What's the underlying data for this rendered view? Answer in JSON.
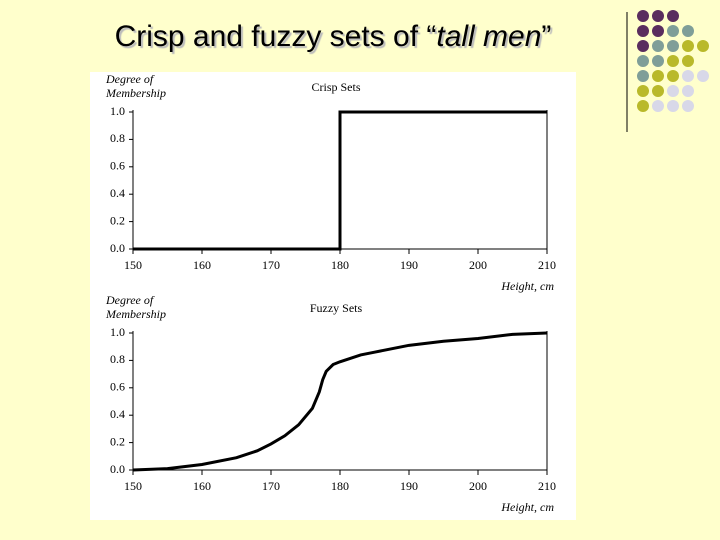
{
  "slide": {
    "title_parts": [
      "Crisp and fuzzy sets of “",
      "tall men",
      "”"
    ]
  },
  "chart_data": [
    {
      "type": "line",
      "title": "Crisp Sets",
      "ylabel": [
        "Degree of",
        "Membership"
      ],
      "xlabel": "Height, cm",
      "x": [
        150,
        180,
        180,
        210
      ],
      "values": [
        0,
        0,
        1,
        1
      ],
      "color": "#000000",
      "xlim": [
        150,
        210
      ],
      "xticks": [
        150,
        160,
        170,
        180,
        190,
        200,
        210
      ],
      "ylim": [
        0,
        1
      ],
      "yticks": [
        {
          "value": 0,
          "label": "0.0"
        },
        0.2,
        0.4,
        0.6,
        0.8,
        {
          "value": 1,
          "label": "1.0"
        }
      ]
    },
    {
      "type": "line",
      "title": "Fuzzy Sets",
      "ylabel": [
        "Degree of",
        "Membership"
      ],
      "xlabel": "Height, cm",
      "x": [
        150,
        155,
        160,
        165,
        168,
        170,
        172,
        174,
        176,
        177,
        177.5,
        178,
        179,
        180,
        183,
        185,
        190,
        195,
        200,
        205,
        210
      ],
      "values": [
        0,
        0.01,
        0.04,
        0.09,
        0.14,
        0.19,
        0.25,
        0.33,
        0.45,
        0.57,
        0.66,
        0.72,
        0.77,
        0.79,
        0.84,
        0.86,
        0.91,
        0.94,
        0.96,
        0.99,
        1.0
      ],
      "color": "#000000",
      "xlim": [
        150,
        210
      ],
      "xticks": [
        150,
        160,
        170,
        180,
        190,
        200,
        210
      ],
      "ylim": [
        0,
        1
      ],
      "yticks": [
        {
          "value": 0,
          "label": "0.0"
        },
        0.2,
        0.4,
        0.6,
        0.8,
        {
          "value": 1,
          "label": "1.0"
        }
      ]
    }
  ]
}
